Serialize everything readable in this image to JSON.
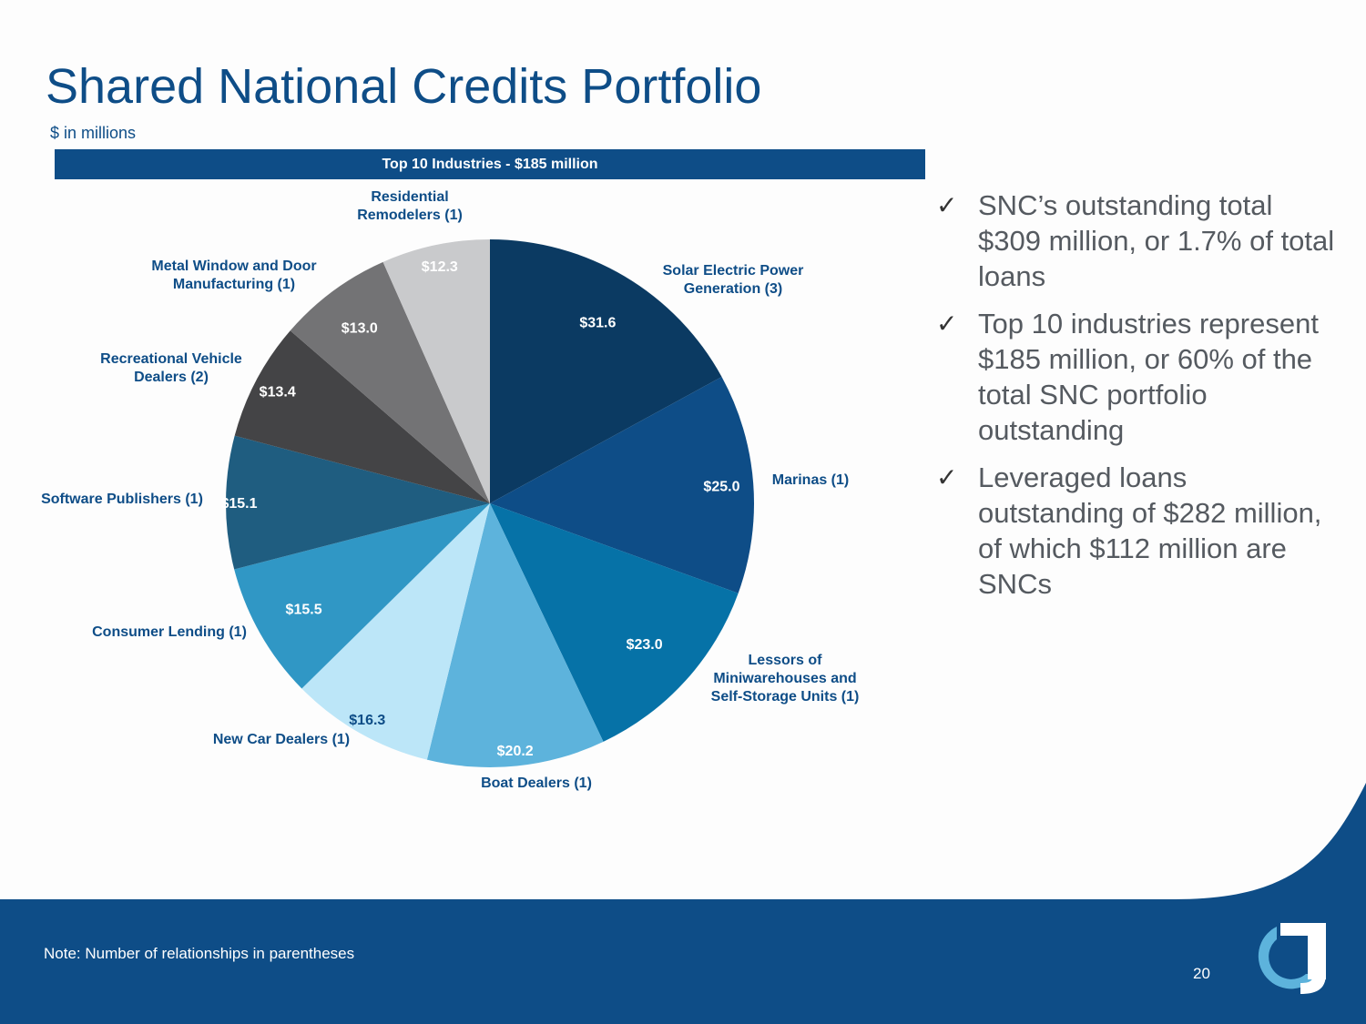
{
  "title": "Shared National Credits Portfolio",
  "subtitle": "$ in millions",
  "banner": "Top 10 Industries - $185 million",
  "chart_data": {
    "type": "pie",
    "title": "Top 10 Industries - $185 million",
    "slices": [
      {
        "label_lines": [
          "Solar Electric Power",
          "Generation (3)"
        ],
        "value": 31.6,
        "value_label": "$31.6",
        "color": "#0b3a62"
      },
      {
        "label_lines": [
          "Marinas (1)"
        ],
        "value": 25.0,
        "value_label": "$25.0",
        "color": "#0e4d87"
      },
      {
        "label_lines": [
          "Lessors of",
          "Miniwarehouses and",
          "Self-Storage Units (1)"
        ],
        "value": 23.0,
        "value_label": "$23.0",
        "color": "#0672a7"
      },
      {
        "label_lines": [
          "Boat Dealers (1)"
        ],
        "value": 20.2,
        "value_label": "$20.2",
        "color": "#5db3dc"
      },
      {
        "label_lines": [
          "New Car Dealers (1)"
        ],
        "value": 16.3,
        "value_label": "$16.3",
        "color": "#bce6f8"
      },
      {
        "label_lines": [
          "Consumer Lending (1)"
        ],
        "value": 15.5,
        "value_label": "$15.5",
        "color": "#3097c5"
      },
      {
        "label_lines": [
          "Software Publishers (1)"
        ],
        "value": 15.1,
        "value_label": "$15.1",
        "color": "#1f5d80"
      },
      {
        "label_lines": [
          "Recreational Vehicle",
          "Dealers (2)"
        ],
        "value": 13.4,
        "value_label": "$13.4",
        "color": "#444446"
      },
      {
        "label_lines": [
          "Metal Window and Door",
          "Manufacturing (1)"
        ],
        "value": 13.0,
        "value_label": "$13.0",
        "color": "#737375"
      },
      {
        "label_lines": [
          "Residential",
          "Remodelers (1)"
        ],
        "value": 12.3,
        "value_label": "$12.3",
        "color": "#c9cacc"
      }
    ]
  },
  "bullets": [
    {
      "check": "✓",
      "text": "SNC’s outstanding total $309 million, or 1.7% of total loans"
    },
    {
      "check": "✓",
      "text": "Top 10 industries represent $185 million, or 60% of the total SNC portfolio outstanding"
    },
    {
      "check": "✓",
      "text": "Leveraged loans outstanding of $282 million, of which $112 million are SNCs"
    }
  ],
  "footer": {
    "note": "Note: Number of relationships in parentheses",
    "page_number": "20"
  },
  "colors": {
    "brand_blue": "#0e4d87",
    "light_blue": "#5db3dc",
    "label_value_dark": "#ffffff",
    "label_value_light": "#0e4d87"
  }
}
